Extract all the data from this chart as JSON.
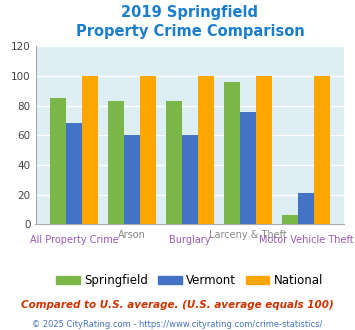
{
  "title_line1": "2019 Springfield",
  "title_line2": "Property Crime Comparison",
  "categories": [
    "All Property Crime",
    "Arson",
    "Burglary",
    "Larceny & Theft",
    "Motor Vehicle Theft"
  ],
  "springfield": [
    85,
    83,
    83,
    96,
    6
  ],
  "vermont": [
    68,
    60,
    60,
    76,
    21
  ],
  "national": [
    100,
    100,
    100,
    100,
    100
  ],
  "color_springfield": "#7ab648",
  "color_vermont": "#4472c4",
  "color_national": "#ffa500",
  "ylim": [
    0,
    120
  ],
  "yticks": [
    0,
    20,
    40,
    60,
    80,
    100,
    120
  ],
  "plot_bg": "#ddeef5",
  "title_color": "#1a7dce",
  "xlabel_color_top": "#888888",
  "xlabel_color_bottom": "#9b59b6",
  "legend_labels": [
    "Springfield",
    "Vermont",
    "National"
  ],
  "footnote1": "Compared to U.S. average. (U.S. average equals 100)",
  "footnote2": "© 2025 CityRating.com - https://www.cityrating.com/crime-statistics/",
  "footnote1_color": "#cc3300",
  "footnote2_color": "#4472c4"
}
